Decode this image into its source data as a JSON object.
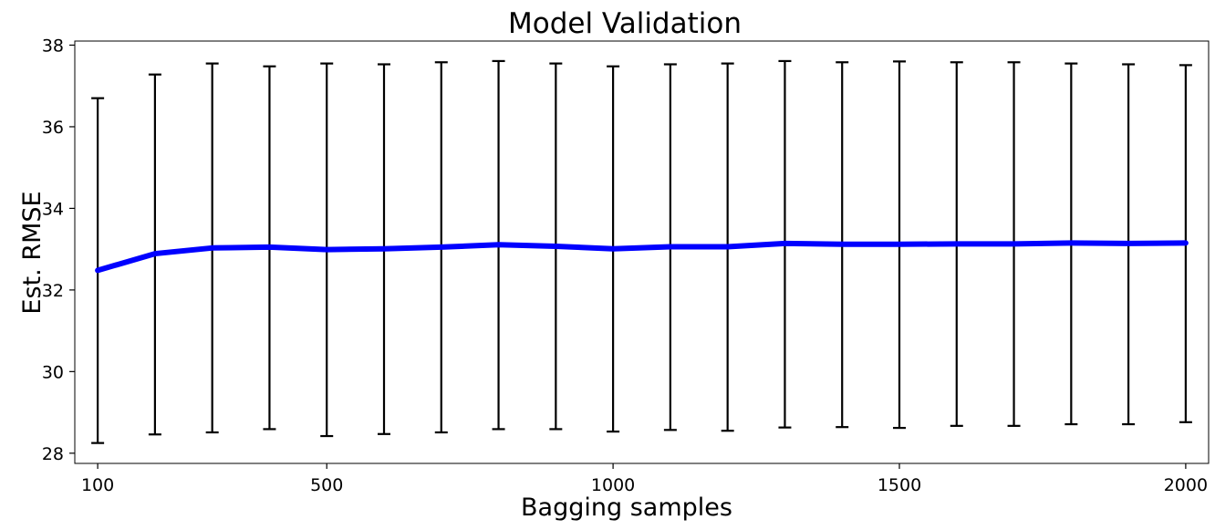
{
  "chart_data": {
    "type": "line",
    "title": "Model Validation",
    "xlabel": "Bagging samples",
    "ylabel": "Est. RMSE",
    "xlim": [
      60,
      2040
    ],
    "ylim": [
      27.75,
      38.1
    ],
    "xticks": [
      100,
      500,
      1000,
      1500,
      2000
    ],
    "xtick_labels": [
      "100",
      "500",
      "1000",
      "1500",
      "2000"
    ],
    "yticks": [
      28,
      30,
      32,
      34,
      36,
      38
    ],
    "ytick_labels": [
      "28",
      "30",
      "32",
      "34",
      "36",
      "38"
    ],
    "grid": false,
    "line_color": "#0000ff",
    "errorbar_color": "#000000",
    "series": [
      {
        "x": [
          100,
          200,
          300,
          400,
          500,
          600,
          700,
          800,
          900,
          1000,
          1100,
          1200,
          1300,
          1400,
          1500,
          1600,
          1700,
          1800,
          1900,
          2000
        ],
        "y": [
          32.48,
          32.89,
          33.03,
          33.05,
          32.99,
          33.01,
          33.05,
          33.11,
          33.07,
          33.01,
          33.06,
          33.06,
          33.14,
          33.12,
          33.12,
          33.13,
          33.13,
          33.15,
          33.14,
          33.15
        ],
        "err_low": [
          28.25,
          28.46,
          28.51,
          28.59,
          28.42,
          28.47,
          28.51,
          28.59,
          28.59,
          28.53,
          28.57,
          28.55,
          28.63,
          28.64,
          28.62,
          28.67,
          28.67,
          28.71,
          28.71,
          28.76
        ],
        "err_high": [
          36.7,
          37.28,
          37.55,
          37.48,
          37.55,
          37.53,
          37.58,
          37.61,
          37.55,
          37.48,
          37.53,
          37.55,
          37.61,
          37.58,
          37.6,
          37.58,
          37.58,
          37.55,
          37.53,
          37.51
        ]
      }
    ]
  }
}
